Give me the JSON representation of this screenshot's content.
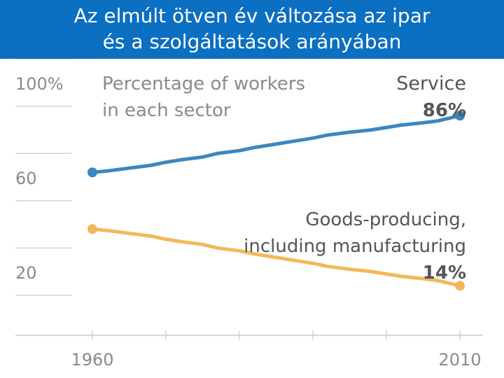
{
  "header": {
    "title": "Az elmúlt ötven év változása az ipar\nés a szolgáltatások arányában"
  },
  "colors": {
    "header_bg": "#0b6fc2",
    "header_text": "#ffffff",
    "service": "#3b86c0",
    "goods": "#f2b85a",
    "axis_text": "#8a8a8a",
    "grid": "#cccccc",
    "annotation": "#555555"
  },
  "chart_data": {
    "type": "line",
    "title": "Percentage of workers in each sector",
    "title_lines": [
      "Percentage of workers",
      "in each sector"
    ],
    "xlabel": "",
    "ylabel": "",
    "xlim": [
      1960,
      2010
    ],
    "ylim": [
      0,
      110
    ],
    "x_ticks": [
      1960,
      2010
    ],
    "x_tick_labels": [
      "1960",
      "2010"
    ],
    "y_ticks": [
      100,
      60,
      20
    ],
    "y_tick_labels": [
      "100%",
      "60",
      "20"
    ],
    "series": [
      {
        "name": "Service",
        "label_lines": [
          "Service"
        ],
        "end_label": "86%",
        "color": "#3b86c0",
        "x": [
          1960,
          1962,
          1965,
          1968,
          1970,
          1972,
          1975,
          1977,
          1980,
          1982,
          1985,
          1988,
          1990,
          1992,
          1995,
          1998,
          2000,
          2002,
          2005,
          2007,
          2010
        ],
        "y": [
          62,
          62.6,
          63.8,
          65,
          66.3,
          67.3,
          68.5,
          70,
          71.2,
          72.5,
          74,
          75.5,
          76.5,
          77.8,
          79,
          80,
          81,
          82,
          83,
          83.8,
          86
        ]
      },
      {
        "name": "Goods-producing, including manufacturing",
        "label_lines": [
          "Goods-producing,",
          "including manufacturing"
        ],
        "end_label": "14%",
        "color": "#f2b85a",
        "x": [
          1960,
          1962,
          1965,
          1968,
          1970,
          1972,
          1975,
          1977,
          1980,
          1982,
          1985,
          1988,
          1990,
          1992,
          1995,
          1998,
          2000,
          2002,
          2005,
          2007,
          2010
        ],
        "y": [
          38,
          37.4,
          36.2,
          35,
          33.7,
          32.7,
          31.5,
          30,
          28.8,
          27.5,
          26,
          24.5,
          23.5,
          22.2,
          21,
          20,
          19,
          18,
          17,
          16.2,
          14
        ]
      }
    ]
  }
}
